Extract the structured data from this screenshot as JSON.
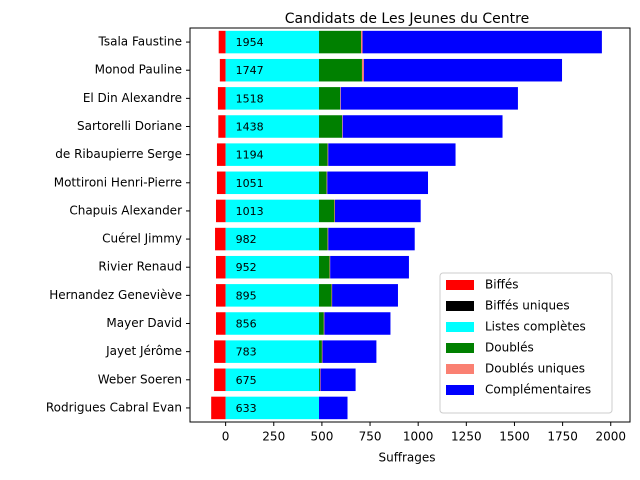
{
  "chart_data": {
    "type": "stacked-barh",
    "title": "Candidats de Les Jeunes du Centre",
    "x_label": "Suffrages",
    "categories": [
      "Tsala Faustine",
      "Monod Pauline",
      "El Din Alexandre",
      "Sartorelli Doriane",
      "de Ribaupierre Serge",
      "Mottironi Henri-Pierre",
      "Chapuis Alexander",
      "Cuérel Jimmy",
      "Rivier Renaud",
      "Hernandez Geneviève",
      "Mayer David",
      "Jayet Jérôme",
      "Weber Soeren",
      "Rodrigues Cabral Evan"
    ],
    "series": [
      {
        "name": "Biffés",
        "color": "#ff0000",
        "values": [
          -36,
          -30,
          -40,
          -38,
          -45,
          -45,
          -50,
          -55,
          -50,
          -50,
          -50,
          -60,
          -60,
          -75
        ]
      },
      {
        "name": "Biffés uniques",
        "color": "#000000",
        "values": [
          0,
          0,
          0,
          0,
          0,
          0,
          0,
          0,
          0,
          0,
          0,
          0,
          0,
          0
        ]
      },
      {
        "name": "Listes complètes",
        "color": "#00ffff",
        "values": [
          485,
          485,
          485,
          485,
          485,
          485,
          485,
          485,
          485,
          485,
          485,
          485,
          485,
          485
        ]
      },
      {
        "name": "Doublés",
        "color": "#008000",
        "values": [
          218,
          223,
          110,
          120,
          45,
          40,
          80,
          45,
          55,
          65,
          25,
          15,
          5,
          0
        ]
      },
      {
        "name": "Doublés uniques",
        "color": "#fa8072",
        "values": [
          8,
          10,
          3,
          3,
          3,
          3,
          3,
          3,
          3,
          3,
          3,
          3,
          3,
          0
        ]
      },
      {
        "name": "Complémentaires",
        "color": "#0000ff",
        "values": [
          1243,
          1029,
          920,
          830,
          661,
          523,
          445,
          449,
          409,
          342,
          343,
          280,
          182,
          148
        ]
      }
    ],
    "totals": [
      1954,
      1747,
      1518,
      1438,
      1194,
      1051,
      1013,
      982,
      952,
      895,
      856,
      783,
      675,
      633
    ],
    "xlim": [
      -185,
      2100
    ],
    "xticks": [
      0,
      250,
      500,
      750,
      1000,
      1250,
      1500,
      1750,
      2000
    ],
    "legend": "lower right"
  }
}
